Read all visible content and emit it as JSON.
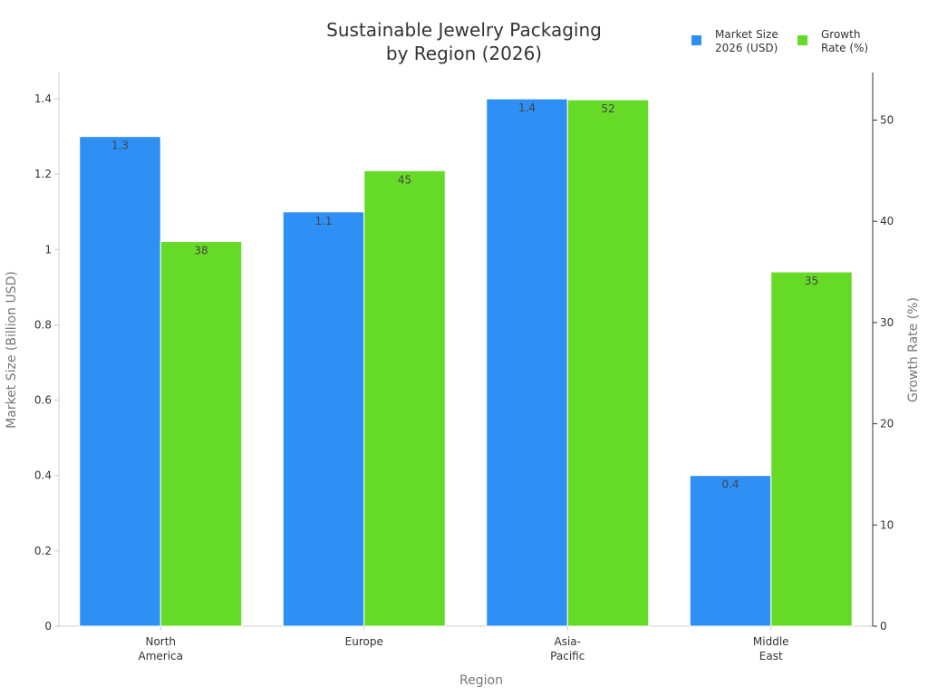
{
  "chart_data": {
    "type": "bar",
    "title_lines": [
      "Sustainable Jewelry Packaging",
      "by Region (2026)"
    ],
    "xlabel": "Region",
    "ylabel": "Market Size (Billion USD)",
    "y2label": "Growth Rate (%)",
    "categories": [
      [
        "North",
        "America"
      ],
      [
        "Europe"
      ],
      [
        "Asia-",
        "Pacific"
      ],
      [
        "Middle",
        "East"
      ]
    ],
    "series": [
      {
        "name_lines": [
          "Market Size",
          "2026 (USD)"
        ],
        "axis": "left",
        "color": "#2e90f5",
        "values": [
          1.3,
          1.1,
          1.4,
          0.4
        ],
        "labels": [
          "1.3",
          "1.1",
          "1.4",
          "0.4"
        ]
      },
      {
        "name_lines": [
          "Growth",
          "Rate (%)"
        ],
        "axis": "right",
        "color": "#66db27",
        "values": [
          38,
          45,
          52,
          35
        ],
        "labels": [
          "38",
          "45",
          "52",
          "35"
        ]
      }
    ],
    "ylim": [
      0,
      1.47
    ],
    "y2lim": [
      0,
      54.7
    ],
    "yticks": [
      0,
      0.2,
      0.4,
      0.6,
      0.8,
      1,
      1.2,
      1.4
    ],
    "ytick_labels": [
      "0",
      "0.2",
      "0.4",
      "0.6",
      "0.8",
      "1",
      "1.2",
      "1.4"
    ],
    "y2ticks": [
      0,
      10,
      20,
      30,
      40,
      50
    ],
    "y2tick_labels": [
      "0",
      "10",
      "20",
      "30",
      "40",
      "50"
    ],
    "grid": false,
    "legend_position": "top-right"
  }
}
